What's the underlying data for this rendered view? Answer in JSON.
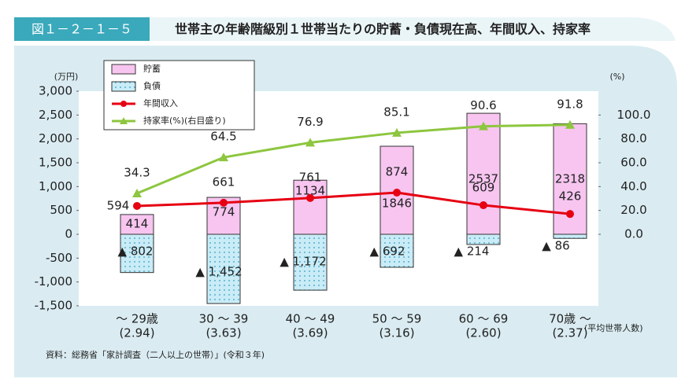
{
  "figure_label": "図１－２－１－５",
  "chart_data": {
    "type": "combo",
    "title": "世帯主の年齢階級別１世帯当たりの貯蓄・負債現在高、年間収入、持家率",
    "y_unit": "(万円)",
    "y2_unit": "(%)",
    "categories": [
      "～ 29歳",
      "30 ～ 39",
      "40 ～ 49",
      "50 ～ 59",
      "60 ～ 69",
      "70歳 ～"
    ],
    "household_sizes": [
      "(2.94)",
      "(3.63)",
      "(3.69)",
      "(3.16)",
      "(2.60)",
      "(2.37)"
    ],
    "household_sizes_label": "(平均世帯人数)",
    "series": [
      {
        "name": "貯蓄",
        "kind": "bar",
        "color": "#f7c5f0",
        "values": [
          414,
          774,
          1134,
          1846,
          2537,
          2318
        ]
      },
      {
        "name": "負債",
        "kind": "bar",
        "color": "#c9ecf7",
        "values": [
          -802,
          -1452,
          -1172,
          -692,
          -214,
          -86
        ],
        "value_labels": [
          "▲ 802",
          "▲ 1,452",
          "▲ 1,172",
          "▲ 692",
          "▲ 214",
          "▲ 86"
        ]
      },
      {
        "name": "年間収入",
        "kind": "line",
        "color": "#e60012",
        "values": [
          594,
          661,
          761,
          874,
          609,
          426
        ]
      },
      {
        "name": "持家率(%)(右目盛り)",
        "kind": "line",
        "axis": "y2",
        "color": "#8dc63f",
        "values": [
          34.3,
          64.5,
          76.9,
          85.1,
          90.6,
          91.8
        ]
      }
    ],
    "ylim": [
      -1500,
      3000
    ],
    "yticks": [
      {
        "value": -1500,
        "label": "-1,500"
      },
      {
        "value": -1000,
        "label": "-1,000"
      },
      -500,
      0,
      500,
      {
        "value": 1000,
        "label": "1,000"
      },
      {
        "value": 1500,
        "label": "1,500"
      },
      {
        "value": 2000,
        "label": "2,000"
      },
      {
        "value": 2500,
        "label": "2,500"
      },
      {
        "value": 3000,
        "label": "3,000"
      }
    ],
    "y2lim": [
      -60,
      120
    ],
    "y2ticks": [
      {
        "value": 0,
        "label": "0.0"
      },
      {
        "value": 20,
        "label": "20.0"
      },
      {
        "value": 40,
        "label": "40.0"
      },
      {
        "value": 60,
        "label": "60.0"
      },
      {
        "value": 80,
        "label": "80.0"
      },
      {
        "value": 100,
        "label": "100.0"
      }
    ],
    "source": "資料：総務省「家計調査（二人以上の世帯）」(令和３年)"
  }
}
